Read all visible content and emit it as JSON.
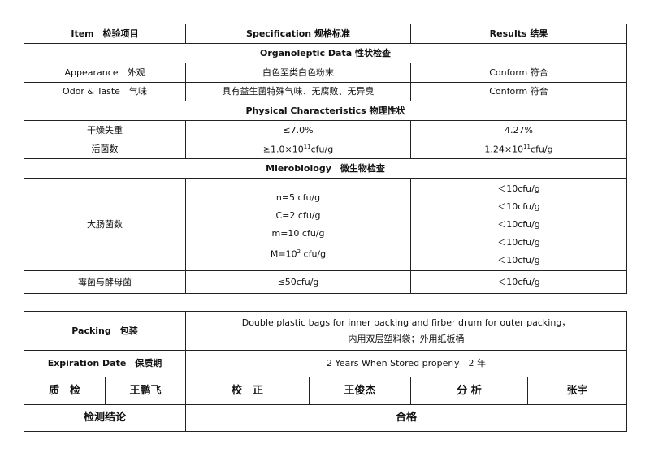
{
  "header": {
    "item": "Item　检验项目",
    "specification": "Specification 规格标准",
    "results": "Results 结果"
  },
  "sections": {
    "organoleptic": "Organoleptic Data 性状检查",
    "physical": "Physical Characteristics 物理性状",
    "microbiology": "Mierobiology　微生物检查"
  },
  "rows": {
    "appearance": {
      "item": "Appearance　外观",
      "spec": "白色至类白色粉末",
      "result": "Conform 符合"
    },
    "odor": {
      "item": "Odor & Taste　气味",
      "spec": "具有益生菌特殊气味、无腐败、无异臭",
      "result": "Conform 符合"
    },
    "drying": {
      "item": "干燥失重",
      "spec": "≤7.0%",
      "result": "4.27%"
    },
    "viable": {
      "item": "活菌数",
      "spec_pre": "≥1.0×10",
      "spec_exp": "11",
      "spec_post": "cfu/g",
      "result_pre": "1.24×10",
      "result_exp": "11",
      "result_post": "cfu/g"
    },
    "coliform": {
      "item": "大肠菌数",
      "spec": [
        "n=5 cfu/g",
        "C=2 cfu/g",
        "m=10 cfu/g"
      ],
      "spec_m_pre": "M=10",
      "spec_m_exp": "2",
      "spec_m_post": " cfu/g",
      "results": [
        "＜10cfu/g",
        "＜10cfu/g",
        "＜10cfu/g",
        "＜10cfu/g",
        "＜10cfu/g"
      ]
    },
    "mold": {
      "item": "霉菌与酵母菌",
      "spec": "≤50cfu/g",
      "result": "＜10cfu/g"
    }
  },
  "footer": {
    "packing_label": "Packing　包装",
    "packing_en": "Double plastic bags for inner packing and firber drum for outer packing，",
    "packing_cn": "内用双层塑料袋；外用纸板桶",
    "expiration_label": "Expiration Date　保质期",
    "expiration_value": "2 Years When Stored properly　2 年",
    "qc_label": "质　检",
    "qc_name": "王鹏飞",
    "check_label": "校　正",
    "check_name": "王俊杰",
    "analysis_label": "分 析",
    "analysis_name": "张宇",
    "conclusion_label": "检测结论",
    "conclusion_value": "合格"
  }
}
